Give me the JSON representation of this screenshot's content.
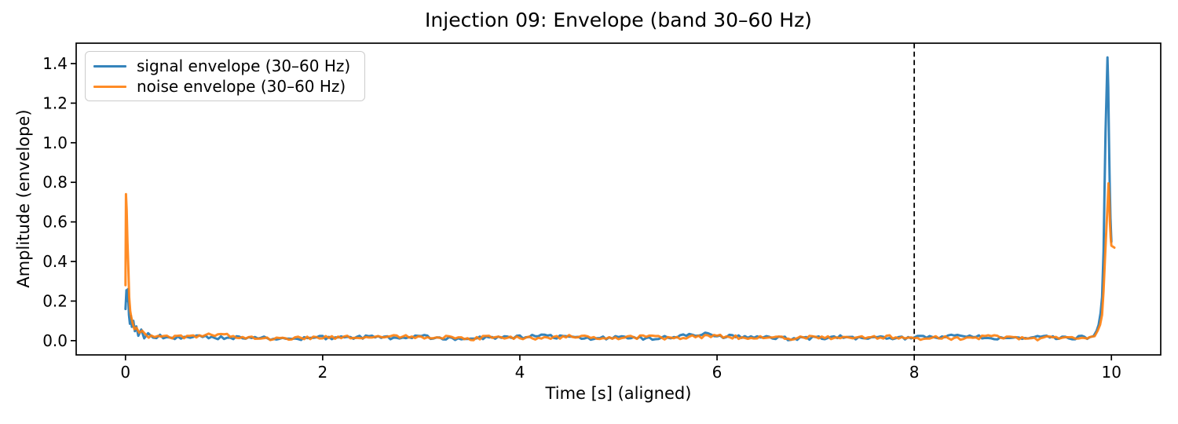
{
  "chart_data": {
    "type": "line",
    "title": "Injection 09: Envelope (band 30–60 Hz)",
    "xlabel": "Time [s] (aligned)",
    "ylabel": "Amplitude (envelope)",
    "xlim": [
      -0.5,
      10.5
    ],
    "ylim": [
      -0.072,
      1.503
    ],
    "xticks": [
      0,
      2,
      4,
      6,
      8,
      10
    ],
    "xtick_labels": [
      "0",
      "2",
      "4",
      "6",
      "8",
      "10"
    ],
    "yticks": [
      0.0,
      0.2,
      0.4,
      0.6,
      0.8,
      1.0,
      1.2,
      1.4
    ],
    "ytick_labels": [
      "0.0",
      "0.2",
      "0.4",
      "0.6",
      "0.8",
      "1.0",
      "1.2",
      "1.4"
    ],
    "grid": false,
    "legend_position": "upper left",
    "axis_color": "#000000",
    "background_color": "#ffffff",
    "marker_line": {
      "x": 8,
      "style": "dashed",
      "color": "#000000"
    },
    "noise_texture": {
      "amplitude": 0.009,
      "step": 0.03,
      "seed": 9,
      "flat_threshold": 0.06
    },
    "line_opacity": 0.9,
    "series": [
      {
        "name": "signal envelope (30–60 Hz)",
        "color": "#1f77b4",
        "points": [
          [
            0,
            0.16
          ],
          [
            0.01,
            0.255
          ],
          [
            0.018,
            0.2
          ],
          [
            0.025,
            0.26
          ],
          [
            0.035,
            0.13
          ],
          [
            0.045,
            0.085
          ],
          [
            0.055,
            0.125
          ],
          [
            0.065,
            0.07
          ],
          [
            0.08,
            0.1
          ],
          [
            0.095,
            0.048
          ],
          [
            0.11,
            0.072
          ],
          [
            0.13,
            0.03
          ],
          [
            0.16,
            0.05
          ],
          [
            0.19,
            0.018
          ],
          [
            0.23,
            0.032
          ],
          [
            0.28,
            0.012
          ],
          [
            0.35,
            0.022
          ],
          [
            0.45,
            0.012
          ],
          [
            0.5,
            0.012
          ],
          [
            0.75,
            0.02
          ],
          [
            1.0,
            0.014
          ],
          [
            1.25,
            0.018
          ],
          [
            1.5,
            0.009
          ],
          [
            1.75,
            0.008
          ],
          [
            2.0,
            0.016
          ],
          [
            2.25,
            0.012
          ],
          [
            2.5,
            0.02
          ],
          [
            2.75,
            0.013
          ],
          [
            3.0,
            0.022
          ],
          [
            3.25,
            0.01
          ],
          [
            3.5,
            0.016
          ],
          [
            3.75,
            0.012
          ],
          [
            4.0,
            0.018
          ],
          [
            4.25,
            0.026
          ],
          [
            4.5,
            0.014
          ],
          [
            4.75,
            0.01
          ],
          [
            5.0,
            0.02
          ],
          [
            5.25,
            0.012
          ],
          [
            5.5,
            0.016
          ],
          [
            5.75,
            0.028
          ],
          [
            5.88,
            0.038
          ],
          [
            6.0,
            0.02
          ],
          [
            6.25,
            0.022
          ],
          [
            6.5,
            0.015
          ],
          [
            6.75,
            0.01
          ],
          [
            7.0,
            0.014
          ],
          [
            7.25,
            0.018
          ],
          [
            7.5,
            0.012
          ],
          [
            7.75,
            0.016
          ],
          [
            8.0,
            0.014
          ],
          [
            8.25,
            0.02
          ],
          [
            8.5,
            0.026
          ],
          [
            8.75,
            0.015
          ],
          [
            9.0,
            0.012
          ],
          [
            9.25,
            0.018
          ],
          [
            9.5,
            0.014
          ],
          [
            9.6,
            0.012
          ],
          [
            9.7,
            0.02
          ],
          [
            9.78,
            0.016
          ],
          [
            9.82,
            0.03
          ],
          [
            9.85,
            0.05
          ],
          [
            9.87,
            0.08
          ],
          [
            9.89,
            0.14
          ],
          [
            9.905,
            0.22
          ],
          [
            9.92,
            0.45
          ],
          [
            9.93,
            0.75
          ],
          [
            9.94,
            1.05
          ],
          [
            9.95,
            1.25
          ],
          [
            9.96,
            1.431
          ],
          [
            9.968,
            1.28
          ],
          [
            9.975,
            1.02
          ],
          [
            9.982,
            0.8
          ],
          [
            9.99,
            0.62
          ],
          [
            10.0,
            0.5
          ]
        ]
      },
      {
        "name": "noise envelope (30–60 Hz)",
        "color": "#ff7f0e",
        "points": [
          [
            0,
            0.28
          ],
          [
            0.005,
            0.74
          ],
          [
            0.012,
            0.66
          ],
          [
            0.02,
            0.5
          ],
          [
            0.03,
            0.36
          ],
          [
            0.038,
            0.22
          ],
          [
            0.048,
            0.15
          ],
          [
            0.058,
            0.12
          ],
          [
            0.072,
            0.09
          ],
          [
            0.09,
            0.058
          ],
          [
            0.11,
            0.066
          ],
          [
            0.14,
            0.04
          ],
          [
            0.17,
            0.046
          ],
          [
            0.21,
            0.028
          ],
          [
            0.26,
            0.02
          ],
          [
            0.33,
            0.015
          ],
          [
            0.45,
            0.02
          ],
          [
            0.5,
            0.018
          ],
          [
            0.75,
            0.025
          ],
          [
            1.0,
            0.03
          ],
          [
            1.25,
            0.015
          ],
          [
            1.5,
            0.008
          ],
          [
            1.75,
            0.012
          ],
          [
            2.0,
            0.02
          ],
          [
            2.25,
            0.016
          ],
          [
            2.5,
            0.012
          ],
          [
            2.75,
            0.022
          ],
          [
            3.0,
            0.014
          ],
          [
            3.25,
            0.018
          ],
          [
            3.5,
            0.01
          ],
          [
            3.75,
            0.02
          ],
          [
            4.0,
            0.012
          ],
          [
            4.25,
            0.016
          ],
          [
            4.5,
            0.02
          ],
          [
            4.75,
            0.014
          ],
          [
            5.0,
            0.01
          ],
          [
            5.25,
            0.02
          ],
          [
            5.5,
            0.013
          ],
          [
            5.75,
            0.018
          ],
          [
            6.0,
            0.025
          ],
          [
            6.25,
            0.015
          ],
          [
            6.5,
            0.02
          ],
          [
            6.75,
            0.012
          ],
          [
            7.0,
            0.018
          ],
          [
            7.25,
            0.01
          ],
          [
            7.5,
            0.015
          ],
          [
            7.75,
            0.02
          ],
          [
            8.0,
            0.012
          ],
          [
            8.25,
            0.016
          ],
          [
            8.5,
            0.01
          ],
          [
            8.75,
            0.02
          ],
          [
            9.0,
            0.015
          ],
          [
            9.25,
            0.01
          ],
          [
            9.5,
            0.018
          ],
          [
            9.6,
            0.015
          ],
          [
            9.7,
            0.012
          ],
          [
            9.78,
            0.02
          ],
          [
            9.83,
            0.03
          ],
          [
            9.86,
            0.05
          ],
          [
            9.885,
            0.08
          ],
          [
            9.905,
            0.13
          ],
          [
            9.92,
            0.25
          ],
          [
            9.935,
            0.42
          ],
          [
            9.95,
            0.58
          ],
          [
            9.962,
            0.7
          ],
          [
            9.97,
            0.795
          ],
          [
            9.978,
            0.72
          ],
          [
            9.985,
            0.6
          ],
          [
            9.993,
            0.52
          ],
          [
            10.0,
            0.48
          ],
          [
            10.03,
            0.47
          ]
        ]
      }
    ]
  }
}
